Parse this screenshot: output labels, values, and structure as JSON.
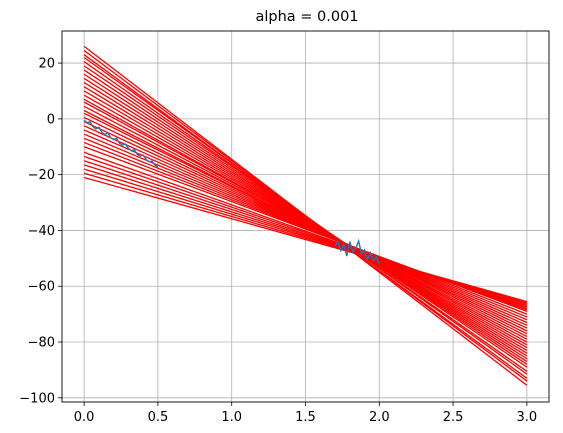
{
  "chart_data": {
    "type": "line",
    "title": "alpha = 0.001",
    "xlabel": "",
    "ylabel": "",
    "xlim": [
      -0.15,
      3.15
    ],
    "ylim": [
      -101.5,
      31.5
    ],
    "xticks": [
      0.0,
      0.5,
      1.0,
      1.5,
      2.0,
      2.5,
      3.0
    ],
    "xtick_labels": [
      "0.0",
      "0.5",
      "1.0",
      "1.5",
      "2.0",
      "2.5",
      "3.0"
    ],
    "yticks": [
      -100,
      -80,
      -60,
      -40,
      -20,
      0,
      20
    ],
    "ytick_labels": [
      "−100",
      "−80",
      "−60",
      "−40",
      "−20",
      "0",
      "20"
    ],
    "grid": true,
    "legend": "none",
    "colors": {
      "fit_lines": "#ff0000",
      "data": "#1f77b4",
      "grid": "#b0b0b0",
      "axes": "#000000"
    },
    "data_series": {
      "x": [
        0.0,
        0.02,
        0.04,
        0.06,
        0.08,
        0.1,
        0.12,
        0.14,
        0.16,
        0.18,
        0.2,
        0.22,
        0.24,
        0.26,
        0.28,
        0.3,
        0.32,
        0.34,
        0.36,
        0.38,
        0.4,
        0.42,
        0.44,
        0.46,
        0.48,
        0.5,
        1.7,
        1.72,
        1.74,
        1.76,
        1.78,
        1.8,
        1.82,
        1.84,
        1.86,
        1.88,
        1.9,
        1.92,
        1.94,
        1.96,
        1.98,
        2.0
      ],
      "y": [
        -0.5,
        -1.4,
        -1.0,
        -2.8,
        -3.6,
        -3.0,
        -4.8,
        -5.6,
        -5.0,
        -6.8,
        -7.4,
        -7.0,
        -8.8,
        -9.4,
        -9.0,
        -10.6,
        -11.5,
        -11.0,
        -12.7,
        -13.3,
        -13.0,
        -14.6,
        -15.4,
        -15.1,
        -16.6,
        -17.2,
        -45.5,
        -44.0,
        -47.2,
        -45.0,
        -49.2,
        -44.0,
        -47.8,
        -46.5,
        -43.8,
        -48.5,
        -47.0,
        -50.5,
        -48.0,
        -50.8,
        -49.5,
        -52.0
      ]
    },
    "fit_lines": [
      {
        "x": [
          0,
          3
        ],
        "y": [
          26.0,
          -95.5
        ]
      },
      {
        "x": [
          0,
          3
        ],
        "y": [
          24.5,
          -94.0
        ]
      },
      {
        "x": [
          0,
          3
        ],
        "y": [
          23.0,
          -93.0
        ]
      },
      {
        "x": [
          0,
          3
        ],
        "y": [
          22.0,
          -91.5
        ]
      },
      {
        "x": [
          0,
          3
        ],
        "y": [
          20.5,
          -90.5
        ]
      },
      {
        "x": [
          0,
          3
        ],
        "y": [
          19.0,
          -89.0
        ]
      },
      {
        "x": [
          0,
          3
        ],
        "y": [
          17.5,
          -88.0
        ]
      },
      {
        "x": [
          0,
          3
        ],
        "y": [
          16.0,
          -87.0
        ]
      },
      {
        "x": [
          0,
          3
        ],
        "y": [
          14.5,
          -86.0
        ]
      },
      {
        "x": [
          0,
          3
        ],
        "y": [
          13.0,
          -85.0
        ]
      },
      {
        "x": [
          0,
          3
        ],
        "y": [
          11.5,
          -84.0
        ]
      },
      {
        "x": [
          0,
          3
        ],
        "y": [
          10.0,
          -83.0
        ]
      },
      {
        "x": [
          0,
          3
        ],
        "y": [
          8.5,
          -82.0
        ]
      },
      {
        "x": [
          0,
          3
        ],
        "y": [
          7.0,
          -81.0
        ]
      },
      {
        "x": [
          0,
          3
        ],
        "y": [
          6.0,
          -80.0
        ]
      },
      {
        "x": [
          0,
          3
        ],
        "y": [
          4.5,
          -79.0
        ]
      },
      {
        "x": [
          0,
          3
        ],
        "y": [
          3.0,
          -78.0
        ]
      },
      {
        "x": [
          0,
          3
        ],
        "y": [
          2.0,
          -77.0
        ]
      },
      {
        "x": [
          0,
          3
        ],
        "y": [
          0.5,
          -76.0
        ]
      },
      {
        "x": [
          0,
          3
        ],
        "y": [
          -1.0,
          -75.0
        ]
      },
      {
        "x": [
          0,
          3
        ],
        "y": [
          -2.5,
          -74.0
        ]
      },
      {
        "x": [
          0,
          3
        ],
        "y": [
          -4.0,
          -73.0
        ]
      },
      {
        "x": [
          0,
          3
        ],
        "y": [
          -5.5,
          -72.0
        ]
      },
      {
        "x": [
          0,
          3
        ],
        "y": [
          -7.0,
          -71.0
        ]
      },
      {
        "x": [
          0,
          3
        ],
        "y": [
          -8.5,
          -70.0
        ]
      },
      {
        "x": [
          0,
          3
        ],
        "y": [
          -10.0,
          -69.0
        ]
      },
      {
        "x": [
          0,
          3
        ],
        "y": [
          -12.0,
          -68.5
        ]
      },
      {
        "x": [
          0,
          3
        ],
        "y": [
          -13.5,
          -68.0
        ]
      },
      {
        "x": [
          0,
          3
        ],
        "y": [
          -15.0,
          -67.5
        ]
      },
      {
        "x": [
          0,
          3
        ],
        "y": [
          -16.5,
          -67.0
        ]
      },
      {
        "x": [
          0,
          3
        ],
        "y": [
          -18.0,
          -66.5
        ]
      },
      {
        "x": [
          0,
          3
        ],
        "y": [
          -19.5,
          -66.0
        ]
      },
      {
        "x": [
          0,
          3
        ],
        "y": [
          -21.0,
          -65.5
        ]
      }
    ]
  }
}
